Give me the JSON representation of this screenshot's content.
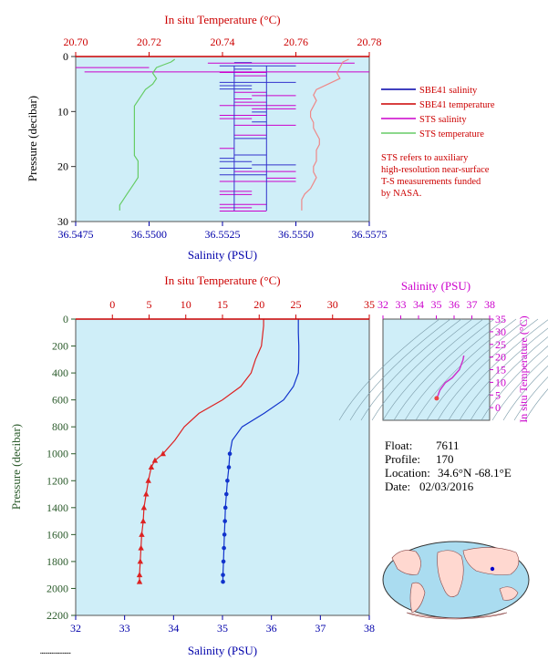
{
  "chart_data": [
    {
      "type": "line",
      "top_axis_label": "In situ Temperature (°C)",
      "bottom_axis_label": "Salinity (PSU)",
      "left_axis_label": "Pressure (decibar)",
      "temperature_range": [
        20.7,
        20.78
      ],
      "temperature_ticks": [
        "20.70",
        "20.72",
        "20.74",
        "20.76",
        "20.78"
      ],
      "salinity_range": [
        36.5475,
        36.5575
      ],
      "salinity_ticks": [
        "36.5475",
        "36.5500",
        "36.5525",
        "36.5550",
        "36.5575"
      ],
      "pressure_range": [
        0,
        30
      ],
      "pressure_ticks": [
        "0",
        "10",
        "20",
        "30"
      ],
      "legend": [
        "SBE41 salinity",
        "SBE41 temperature",
        "STS salinity",
        "STS temperature"
      ],
      "note": [
        "STS refers to auxiliary",
        "high-resolution near-surface",
        "T-S measurements funded",
        "by NASA."
      ],
      "series": [
        {
          "name": "STS temperature",
          "axis": "temperature",
          "color": "#66cc66",
          "pressure": [
            0.5,
            1,
            1.5,
            2,
            3,
            4,
            5,
            6,
            7,
            8,
            9,
            10,
            11,
            12,
            13,
            14,
            15,
            16,
            17,
            18,
            19,
            20,
            21,
            22,
            23,
            24,
            25,
            26,
            27,
            28
          ],
          "values": [
            20.727,
            20.726,
            20.724,
            20.722,
            20.721,
            20.722,
            20.721,
            20.719,
            20.718,
            20.717,
            20.716,
            20.716,
            20.716,
            20.716,
            20.716,
            20.716,
            20.716,
            20.716,
            20.716,
            20.716,
            20.717,
            20.717,
            20.717,
            20.717,
            20.716,
            20.715,
            20.714,
            20.713,
            20.712,
            20.712
          ]
        },
        {
          "name": "STS salinity (red tail)",
          "axis": "salinity",
          "color": "#ee8888",
          "pressure": [
            0.5,
            1,
            2,
            3,
            4,
            5,
            6,
            7,
            8,
            9,
            10,
            11,
            12,
            13,
            14,
            15,
            16,
            17,
            18,
            19,
            20,
            21,
            22,
            23,
            24,
            25,
            26,
            27,
            28
          ],
          "values": [
            36.5568,
            36.5566,
            36.5565,
            36.5564,
            36.5565,
            36.5561,
            36.5557,
            36.5556,
            36.5557,
            36.5556,
            36.5555,
            36.5555,
            36.5556,
            36.5556,
            36.5557,
            36.5558,
            36.5558,
            36.5557,
            36.5557,
            36.5557,
            36.5556,
            36.5556,
            36.5557,
            36.5556,
            36.5555,
            36.5553,
            36.5552,
            36.5552,
            36.5552
          ]
        }
      ]
    },
    {
      "type": "line",
      "top_axis_label": "In situ Temperature (°C)",
      "bottom_axis_label": "Salinity (PSU)",
      "left_axis_label": "Pressure (decibar)",
      "temperature_range": [
        -5,
        35
      ],
      "temperature_ticks": [
        "0",
        "5",
        "10",
        "15",
        "20",
        "25",
        "30",
        "35"
      ],
      "salinity_range": [
        32,
        38
      ],
      "salinity_ticks": [
        "32",
        "33",
        "34",
        "35",
        "36",
        "37",
        "38"
      ],
      "pressure_range": [
        0,
        2200
      ],
      "pressure_ticks": [
        "0",
        "200",
        "400",
        "600",
        "800",
        "1000",
        "1200",
        "1400",
        "1600",
        "1800",
        "2000",
        "2200"
      ],
      "series": [
        {
          "name": "temperature",
          "axis": "temperature",
          "color": "#dd2222",
          "pressure": [
            0,
            50,
            100,
            200,
            300,
            400,
            500,
            600,
            700,
            800,
            900,
            1000,
            1050,
            1100,
            1200,
            1300,
            1400,
            1500,
            1600,
            1700,
            1800,
            1900,
            1950
          ],
          "values": [
            20.6,
            20.6,
            20.5,
            20.3,
            19.5,
            18.9,
            17.5,
            15.0,
            11.8,
            9.8,
            8.5,
            6.9,
            5.8,
            5.3,
            4.9,
            4.6,
            4.3,
            4.2,
            4.0,
            3.9,
            3.8,
            3.7,
            3.7
          ]
        },
        {
          "name": "salinity",
          "axis": "salinity",
          "color": "#1133cc",
          "pressure": [
            0,
            100,
            200,
            300,
            400,
            500,
            600,
            700,
            800,
            900,
            1000,
            1100,
            1200,
            1300,
            1400,
            1500,
            1600,
            1700,
            1800,
            1900,
            1950
          ],
          "values": [
            36.55,
            36.55,
            36.56,
            36.56,
            36.55,
            36.45,
            36.25,
            35.85,
            35.4,
            35.2,
            35.15,
            35.13,
            35.1,
            35.08,
            35.06,
            35.05,
            35.04,
            35.03,
            35.02,
            35.01,
            35.01
          ]
        }
      ]
    },
    {
      "type": "scatter",
      "title": "Salinity (PSU)",
      "ylabel": "In situ Temperature (°C)",
      "salinity_range": [
        32,
        38
      ],
      "salinity_ticks": [
        "32",
        "33",
        "34",
        "35",
        "36",
        "37",
        "38"
      ],
      "temperature_range": [
        -5,
        35
      ],
      "temperature_ticks": [
        "0",
        "5",
        "10",
        "15",
        "20",
        "25",
        "30",
        "35"
      ],
      "series": [
        {
          "name": "T-S",
          "color": "#cc33cc",
          "salinity": [
            36.55,
            36.5,
            36.3,
            35.9,
            35.5,
            35.2,
            35.1,
            35.05,
            35.02
          ],
          "temperature": [
            20.6,
            18.9,
            15.0,
            11.8,
            9.8,
            6.9,
            5.0,
            4.2,
            3.7
          ]
        }
      ]
    }
  ],
  "float_info": {
    "float_label": "Float:",
    "float_value": "7611",
    "profile_label": "Profile:",
    "profile_value": "170",
    "location_label": "Location:",
    "location_value": "34.6°N  -68.1°E",
    "date_label": "Date:",
    "date_value": "02/03/2016"
  },
  "colors": {
    "panel_bg": "#cfeef8",
    "red_axis": "#cc0000",
    "blue_axis": "#0000aa",
    "green_axis": "#2a5a2a",
    "magenta_axis": "#cc00cc"
  }
}
